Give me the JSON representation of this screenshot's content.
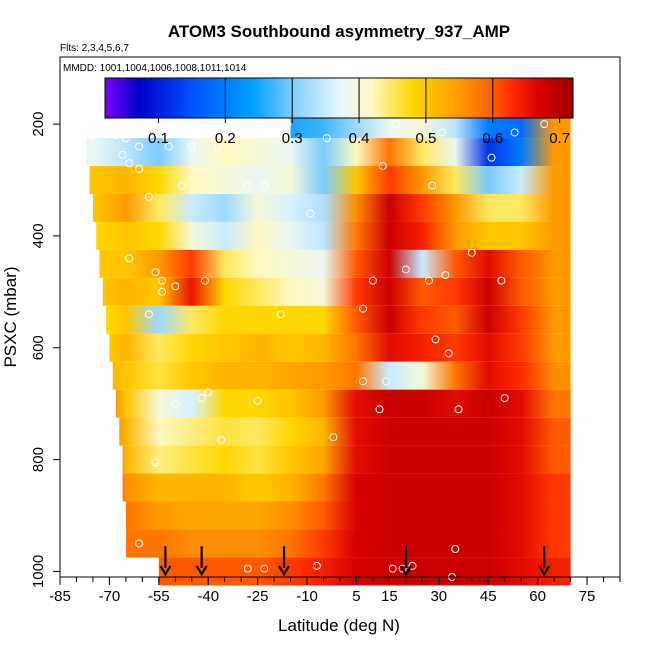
{
  "colors": {
    "palette": [
      "#7b00ff",
      "#0000c8",
      "#0050ff",
      "#00a0ff",
      "#8fd3ff",
      "#e6f7ff",
      "#fff8c0",
      "#ffd700",
      "#ffa500",
      "#ff6a00",
      "#ff2a00",
      "#d50000",
      "#a00000"
    ],
    "palette_stops": [
      0.02,
      0.07,
      0.15,
      0.24,
      0.31,
      0.37,
      0.42,
      0.48,
      0.54,
      0.59,
      0.63,
      0.67,
      0.72
    ],
    "bar_separators": [
      0.2,
      0.3,
      0.4,
      0.5,
      0.6
    ],
    "marker": "#ffffff",
    "arrow": "#000000"
  },
  "chart_data": {
    "type": "heatmap",
    "title": "ATOM3 Southbound asymmetry_937_AMP",
    "subtitle_flts": "Flts: 2,3,4,5,6,7",
    "subtitle_mmdd": "MMDD: 1001,1004,1006,1008,1011,1014",
    "xlabel": "Latitude (deg N)",
    "ylabel": "PSXC (mbar)",
    "xlim": [
      -85,
      85
    ],
    "ylim": [
      1010,
      80
    ],
    "x_tick_labels": [
      "-85",
      "-70",
      "-55",
      "-40",
      "-25",
      "-10",
      "5",
      "15",
      "30",
      "45",
      "60",
      "75"
    ],
    "x_tick_values": [
      -85,
      -70,
      -55,
      -40,
      -25,
      -10,
      5,
      15,
      30,
      45,
      60,
      75
    ],
    "y_tick_labels": [
      "200",
      "400",
      "600",
      "800",
      "1000"
    ],
    "y_tick_values": [
      200,
      400,
      600,
      800,
      1000
    ],
    "colorbar": {
      "min": 0.02,
      "max": 0.72,
      "tick_labels": [
        "0.1",
        "0.2",
        "0.3",
        "0.4",
        "0.5",
        "0.6",
        "0.7"
      ],
      "tick_values": [
        0.1,
        0.2,
        0.3,
        0.4,
        0.5,
        0.6,
        0.7
      ]
    },
    "x_grid": [
      -75,
      -65,
      -55,
      -45,
      -35,
      -25,
      -15,
      -5,
      5,
      15,
      25,
      35,
      45,
      55,
      65
    ],
    "layers": [
      {
        "p": 200,
        "lat_start": -15,
        "lat_end": 70,
        "values": [
          null,
          null,
          null,
          null,
          null,
          null,
          0.25,
          0.27,
          0.32,
          0.38,
          0.4,
          0.34,
          0.2,
          0.18,
          0.55
        ]
      },
      {
        "p": 250,
        "lat_start": -77,
        "lat_end": 70,
        "values": [
          0.38,
          0.34,
          0.3,
          0.38,
          0.42,
          0.4,
          0.38,
          0.3,
          0.42,
          0.58,
          0.45,
          0.38,
          0.12,
          0.2,
          0.55
        ]
      },
      {
        "p": 300,
        "lat_start": -76,
        "lat_end": 70,
        "values": [
          0.5,
          0.52,
          0.48,
          0.42,
          0.4,
          0.38,
          0.4,
          0.3,
          0.5,
          0.62,
          0.55,
          0.45,
          0.3,
          0.35,
          0.55
        ]
      },
      {
        "p": 350,
        "lat_start": -75,
        "lat_end": 70,
        "values": [
          0.5,
          0.55,
          0.45,
          0.35,
          0.32,
          0.4,
          0.36,
          0.33,
          0.56,
          0.68,
          0.62,
          0.55,
          0.45,
          0.45,
          0.55
        ]
      },
      {
        "p": 400,
        "lat_start": -74,
        "lat_end": 70,
        "values": [
          0.48,
          0.5,
          0.48,
          0.4,
          0.35,
          0.42,
          0.38,
          0.34,
          0.58,
          0.68,
          0.64,
          0.55,
          0.5,
          0.5,
          0.55
        ]
      },
      {
        "p": 450,
        "lat_start": -73,
        "lat_end": 70,
        "values": [
          0.5,
          0.5,
          0.55,
          0.62,
          0.45,
          0.42,
          0.4,
          0.38,
          0.6,
          0.68,
          0.35,
          0.6,
          0.66,
          0.6,
          0.55
        ]
      },
      {
        "p": 500,
        "lat_start": -72,
        "lat_end": 70,
        "values": [
          0.5,
          0.52,
          0.5,
          0.65,
          0.48,
          0.45,
          0.42,
          0.4,
          0.62,
          0.68,
          0.6,
          0.62,
          0.68,
          0.6,
          0.55
        ]
      },
      {
        "p": 550,
        "lat_start": -71,
        "lat_end": 70,
        "values": [
          0.48,
          0.5,
          0.32,
          0.45,
          0.48,
          0.48,
          0.48,
          0.48,
          0.6,
          0.68,
          0.62,
          0.6,
          0.68,
          0.62,
          0.55
        ]
      },
      {
        "p": 600,
        "lat_start": -70,
        "lat_end": 70,
        "values": [
          0.5,
          0.52,
          0.45,
          0.48,
          0.5,
          0.52,
          0.5,
          0.52,
          0.58,
          0.66,
          0.64,
          0.62,
          0.66,
          0.62,
          0.55
        ]
      },
      {
        "p": 650,
        "lat_start": -69,
        "lat_end": 70,
        "values": [
          0.52,
          0.5,
          0.46,
          0.5,
          0.52,
          0.52,
          0.54,
          0.55,
          0.58,
          0.35,
          0.4,
          0.58,
          0.66,
          0.63,
          0.56
        ]
      },
      {
        "p": 700,
        "lat_start": -68,
        "lat_end": 70,
        "values": [
          0.55,
          0.5,
          0.4,
          0.36,
          0.48,
          0.48,
          0.5,
          0.55,
          0.66,
          0.68,
          0.68,
          0.66,
          0.68,
          0.66,
          0.58
        ]
      },
      {
        "p": 750,
        "lat_start": -67,
        "lat_end": 70,
        "values": [
          0.55,
          0.52,
          0.42,
          0.44,
          0.46,
          0.45,
          0.48,
          0.52,
          0.66,
          0.68,
          0.68,
          0.68,
          0.68,
          0.66,
          0.6
        ]
      },
      {
        "p": 800,
        "lat_start": -66,
        "lat_end": 70,
        "values": [
          0.55,
          0.52,
          0.44,
          0.46,
          0.48,
          0.46,
          0.5,
          0.54,
          0.66,
          0.68,
          0.68,
          0.68,
          0.68,
          0.66,
          0.6
        ]
      },
      {
        "p": 850,
        "lat_start": -66,
        "lat_end": 70,
        "values": [
          0.58,
          0.56,
          0.52,
          0.52,
          0.52,
          0.5,
          0.52,
          0.58,
          0.67,
          0.68,
          0.68,
          0.68,
          0.68,
          0.66,
          0.62
        ]
      },
      {
        "p": 900,
        "lat_start": -65,
        "lat_end": 70,
        "values": [
          0.58,
          0.58,
          0.55,
          0.54,
          0.54,
          0.54,
          0.56,
          0.6,
          0.67,
          0.68,
          0.68,
          0.68,
          0.68,
          0.66,
          0.62
        ]
      },
      {
        "p": 950,
        "lat_start": -65,
        "lat_end": 70,
        "values": [
          0.58,
          0.58,
          0.58,
          0.56,
          0.56,
          0.56,
          0.58,
          0.62,
          0.67,
          0.68,
          0.68,
          0.68,
          0.68,
          0.66,
          0.62
        ]
      },
      {
        "p": 1000,
        "lat_start": -55,
        "lat_end": 70,
        "values": [
          null,
          null,
          0.6,
          0.6,
          0.6,
          0.6,
          0.62,
          0.64,
          0.67,
          0.68,
          0.68,
          0.68,
          0.68,
          0.66,
          0.64
        ]
      }
    ],
    "markers": [
      {
        "lat": -75,
        "p": 220
      },
      {
        "lat": -68,
        "p": 220
      },
      {
        "lat": -65,
        "p": 225
      },
      {
        "lat": -61,
        "p": 240
      },
      {
        "lat": -53,
        "p": 220
      },
      {
        "lat": -52,
        "p": 240
      },
      {
        "lat": -66,
        "p": 255
      },
      {
        "lat": -64,
        "p": 270
      },
      {
        "lat": -61,
        "p": 280
      },
      {
        "lat": -45,
        "p": 240
      },
      {
        "lat": -37,
        "p": 240
      },
      {
        "lat": -16,
        "p": 200
      },
      {
        "lat": -4,
        "p": 225
      },
      {
        "lat": 17,
        "p": 200
      },
      {
        "lat": 31,
        "p": 215
      },
      {
        "lat": 62,
        "p": 200
      },
      {
        "lat": 53,
        "p": 215
      },
      {
        "lat": 46,
        "p": 260
      },
      {
        "lat": 13,
        "p": 275
      },
      {
        "lat": 28,
        "p": 310
      },
      {
        "lat": -48,
        "p": 310
      },
      {
        "lat": -28,
        "p": 310
      },
      {
        "lat": -23,
        "p": 310
      },
      {
        "lat": -58,
        "p": 330
      },
      {
        "lat": -9,
        "p": 360
      },
      {
        "lat": -64,
        "p": 440
      },
      {
        "lat": -56,
        "p": 465
      },
      {
        "lat": -50,
        "p": 490
      },
      {
        "lat": -54,
        "p": 480
      },
      {
        "lat": -41,
        "p": 480
      },
      {
        "lat": -54,
        "p": 500
      },
      {
        "lat": 10,
        "p": 480
      },
      {
        "lat": 20,
        "p": 460
      },
      {
        "lat": 32,
        "p": 470
      },
      {
        "lat": 49,
        "p": 480
      },
      {
        "lat": 27,
        "p": 480
      },
      {
        "lat": -58,
        "p": 540
      },
      {
        "lat": -18,
        "p": 540
      },
      {
        "lat": 7,
        "p": 530
      },
      {
        "lat": 40,
        "p": 430
      },
      {
        "lat": 29,
        "p": 585
      },
      {
        "lat": 33,
        "p": 610
      },
      {
        "lat": 7,
        "p": 660
      },
      {
        "lat": 14,
        "p": 660
      },
      {
        "lat": -40,
        "p": 680
      },
      {
        "lat": -42,
        "p": 690
      },
      {
        "lat": -25,
        "p": 695
      },
      {
        "lat": -50,
        "p": 700
      },
      {
        "lat": 12,
        "p": 710
      },
      {
        "lat": 36,
        "p": 710
      },
      {
        "lat": 50,
        "p": 690
      },
      {
        "lat": 72,
        "p": 670
      },
      {
        "lat": -36,
        "p": 765
      },
      {
        "lat": -2,
        "p": 760
      },
      {
        "lat": -56,
        "p": 805
      },
      {
        "lat": -71,
        "p": 955
      },
      {
        "lat": -61,
        "p": 950
      },
      {
        "lat": 35,
        "p": 960
      },
      {
        "lat": -28,
        "p": 995
      },
      {
        "lat": -23,
        "p": 995
      },
      {
        "lat": -7,
        "p": 990
      },
      {
        "lat": 16,
        "p": 995
      },
      {
        "lat": 19,
        "p": 995
      },
      {
        "lat": 22,
        "p": 990
      },
      {
        "lat": 34,
        "p": 1010
      },
      {
        "lat": 72,
        "p": 1010
      }
    ],
    "arrows": [
      {
        "lat": -53
      },
      {
        "lat": -42
      },
      {
        "lat": -17
      },
      {
        "lat": 20
      },
      {
        "lat": 62
      }
    ]
  }
}
